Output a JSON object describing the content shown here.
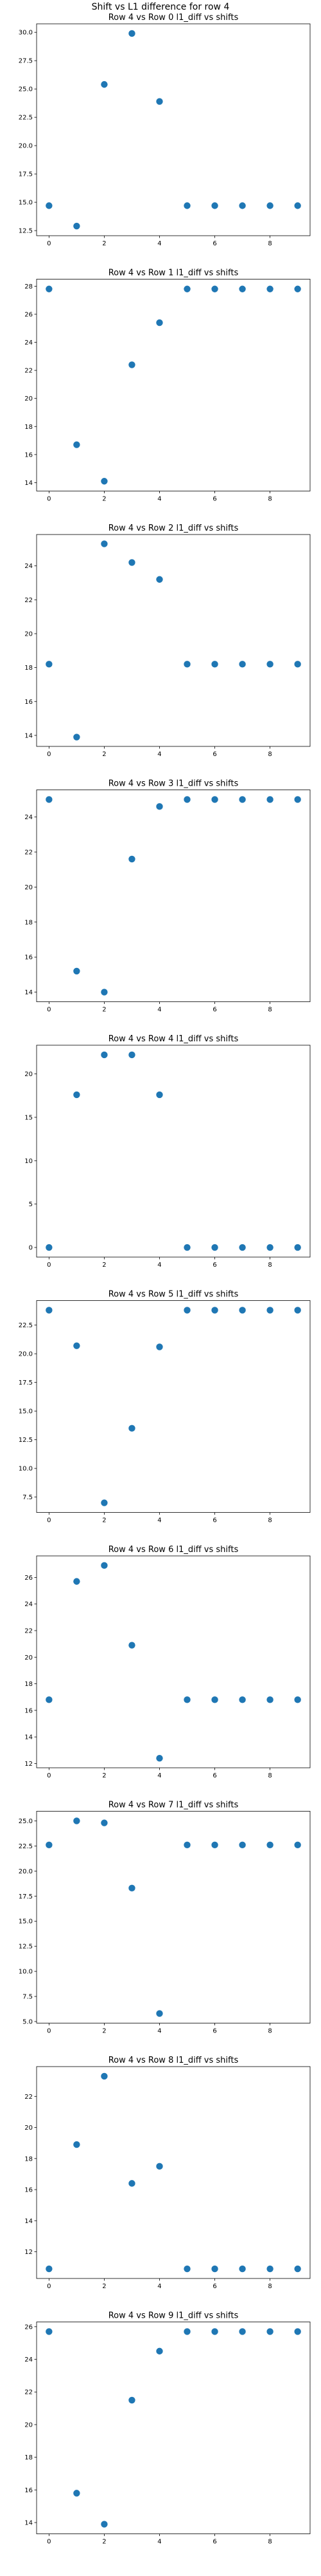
{
  "figure": {
    "suptitle": "Shift vs L1 difference for row 4",
    "point_color": "#1f77b4"
  },
  "chart_data": [
    {
      "type": "scatter",
      "title": "Row 4 vs Row 0 l1_diff vs shifts",
      "x": [
        0,
        1,
        2,
        3,
        4,
        5,
        6,
        7,
        8,
        9
      ],
      "y": [
        14.7,
        12.9,
        25.4,
        29.9,
        23.9,
        14.7,
        14.7,
        14.7,
        14.7,
        14.7
      ],
      "xlim": [
        -0.45,
        9.45
      ],
      "ylim": [
        12.05,
        30.75
      ],
      "xticks": [
        0,
        2,
        4,
        6,
        8
      ],
      "yticks": [
        12.5,
        15.0,
        17.5,
        20.0,
        22.5,
        25.0,
        27.5,
        30.0
      ],
      "ytick_labels": [
        "12.5",
        "15.0",
        "17.5",
        "20.0",
        "22.5",
        "25.0",
        "27.5",
        "30.0"
      ]
    },
    {
      "type": "scatter",
      "title": "Row 4 vs Row 1 l1_diff vs shifts",
      "x": [
        0,
        1,
        2,
        3,
        4,
        5,
        6,
        7,
        8,
        9
      ],
      "y": [
        27.8,
        16.7,
        14.1,
        22.4,
        25.4,
        27.8,
        27.8,
        27.8,
        27.8,
        27.8
      ],
      "xlim": [
        -0.45,
        9.45
      ],
      "ylim": [
        13.4,
        28.5
      ],
      "xticks": [
        0,
        2,
        4,
        6,
        8
      ],
      "yticks": [
        14,
        16,
        18,
        20,
        22,
        24,
        26,
        28
      ],
      "ytick_labels": [
        "14",
        "16",
        "18",
        "20",
        "22",
        "24",
        "26",
        "28"
      ]
    },
    {
      "type": "scatter",
      "title": "Row 4 vs Row 2 l1_diff vs shifts",
      "x": [
        0,
        1,
        2,
        3,
        4,
        5,
        6,
        7,
        8,
        9
      ],
      "y": [
        18.2,
        13.9,
        25.3,
        24.2,
        23.2,
        18.2,
        18.2,
        18.2,
        18.2,
        18.2
      ],
      "xlim": [
        -0.45,
        9.45
      ],
      "ylim": [
        13.35,
        25.85
      ],
      "xticks": [
        0,
        2,
        4,
        6,
        8
      ],
      "yticks": [
        14,
        16,
        18,
        20,
        22,
        24
      ],
      "ytick_labels": [
        "14",
        "16",
        "18",
        "20",
        "22",
        "24"
      ]
    },
    {
      "type": "scatter",
      "title": "Row 4 vs Row 3 l1_diff vs shifts",
      "x": [
        0,
        1,
        2,
        3,
        4,
        5,
        6,
        7,
        8,
        9
      ],
      "y": [
        25.0,
        15.2,
        14.0,
        21.6,
        24.6,
        25.0,
        25.0,
        25.0,
        25.0,
        25.0
      ],
      "xlim": [
        -0.45,
        9.45
      ],
      "ylim": [
        13.45,
        25.55
      ],
      "xticks": [
        0,
        2,
        4,
        6,
        8
      ],
      "yticks": [
        14,
        16,
        18,
        20,
        22,
        24
      ],
      "ytick_labels": [
        "14",
        "16",
        "18",
        "20",
        "22",
        "24"
      ]
    },
    {
      "type": "scatter",
      "title": "Row 4 vs Row 4 l1_diff vs shifts",
      "x": [
        0,
        1,
        2,
        3,
        4,
        5,
        6,
        7,
        8,
        9
      ],
      "y": [
        0,
        17.6,
        22.2,
        22.2,
        17.6,
        0,
        0,
        0,
        0,
        0
      ],
      "xlim": [
        -0.45,
        9.45
      ],
      "ylim": [
        -1.11,
        23.31
      ],
      "xticks": [
        0,
        2,
        4,
        6,
        8
      ],
      "yticks": [
        0,
        5,
        10,
        15,
        20
      ],
      "ytick_labels": [
        "0",
        "5",
        "10",
        "15",
        "20"
      ]
    },
    {
      "type": "scatter",
      "title": "Row 4 vs Row 5 l1_diff vs shifts",
      "x": [
        0,
        1,
        2,
        3,
        4,
        5,
        6,
        7,
        8,
        9
      ],
      "y": [
        23.8,
        20.7,
        7.0,
        13.5,
        20.6,
        23.8,
        23.8,
        23.8,
        23.8,
        23.8
      ],
      "xlim": [
        -0.45,
        9.45
      ],
      "ylim": [
        6.16,
        24.64
      ],
      "xticks": [
        0,
        2,
        4,
        6,
        8
      ],
      "yticks": [
        7.5,
        10.0,
        12.5,
        15.0,
        17.5,
        20.0,
        22.5
      ],
      "ytick_labels": [
        "7.5",
        "10.0",
        "12.5",
        "15.0",
        "17.5",
        "20.0",
        "22.5"
      ]
    },
    {
      "type": "scatter",
      "title": "Row 4 vs Row 6 l1_diff vs shifts",
      "x": [
        0,
        1,
        2,
        3,
        4,
        5,
        6,
        7,
        8,
        9
      ],
      "y": [
        16.8,
        25.7,
        26.9,
        20.9,
        12.4,
        16.8,
        16.8,
        16.8,
        16.8,
        16.8
      ],
      "xlim": [
        -0.45,
        9.45
      ],
      "ylim": [
        11.68,
        27.62
      ],
      "xticks": [
        0,
        2,
        4,
        6,
        8
      ],
      "yticks": [
        12,
        14,
        16,
        18,
        20,
        22,
        24,
        26
      ],
      "ytick_labels": [
        "12",
        "14",
        "16",
        "18",
        "20",
        "22",
        "24",
        "26"
      ]
    },
    {
      "type": "scatter",
      "title": "Row 4 vs Row 7 l1_diff vs shifts",
      "x": [
        0,
        1,
        2,
        3,
        4,
        5,
        6,
        7,
        8,
        9
      ],
      "y": [
        22.6,
        25.0,
        24.8,
        18.3,
        5.8,
        22.6,
        22.6,
        22.6,
        22.6,
        22.6
      ],
      "xlim": [
        -0.45,
        9.45
      ],
      "ylim": [
        4.84,
        25.96
      ],
      "xticks": [
        0,
        2,
        4,
        6,
        8
      ],
      "yticks": [
        5.0,
        7.5,
        10.0,
        12.5,
        15.0,
        17.5,
        20.0,
        22.5,
        25.0
      ],
      "ytick_labels": [
        "5.0",
        "7.5",
        "10.0",
        "12.5",
        "15.0",
        "17.5",
        "20.0",
        "22.5",
        "25.0"
      ]
    },
    {
      "type": "scatter",
      "title": "Row 4 vs Row 8 l1_diff vs shifts",
      "x": [
        0,
        1,
        2,
        3,
        4,
        5,
        6,
        7,
        8,
        9
      ],
      "y": [
        10.9,
        18.9,
        23.3,
        16.4,
        17.5,
        10.9,
        10.9,
        10.9,
        10.9,
        10.9
      ],
      "xlim": [
        -0.45,
        9.45
      ],
      "ylim": [
        10.28,
        23.92
      ],
      "xticks": [
        0,
        2,
        4,
        6,
        8
      ],
      "yticks": [
        12,
        14,
        16,
        18,
        20,
        22
      ],
      "ytick_labels": [
        "12",
        "14",
        "16",
        "18",
        "20",
        "22"
      ]
    },
    {
      "type": "scatter",
      "title": "Row 4 vs Row 9 l1_diff vs shifts",
      "x": [
        0,
        1,
        2,
        3,
        4,
        5,
        6,
        7,
        8,
        9
      ],
      "y": [
        25.7,
        15.8,
        13.9,
        21.5,
        24.5,
        25.7,
        25.7,
        25.7,
        25.7,
        25.7
      ],
      "xlim": [
        -0.45,
        9.45
      ],
      "ylim": [
        13.31,
        26.29
      ],
      "xticks": [
        0,
        2,
        4,
        6,
        8
      ],
      "yticks": [
        14,
        16,
        18,
        20,
        22,
        24,
        26
      ],
      "ytick_labels": [
        "14",
        "16",
        "18",
        "20",
        "22",
        "24",
        "26"
      ]
    }
  ]
}
